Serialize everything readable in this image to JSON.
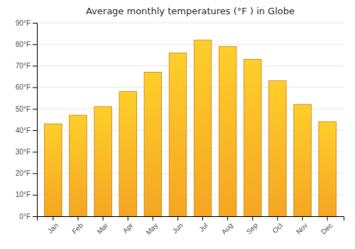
{
  "chart_data": {
    "type": "bar",
    "title": "Average monthly temperatures (°F ) in Globe",
    "categories": [
      "Jan",
      "Feb",
      "Mar",
      "Apr",
      "May",
      "Jun",
      "Jul",
      "Aug",
      "Sep",
      "Oct",
      "Nov",
      "Dec"
    ],
    "values": [
      43,
      47,
      51,
      58,
      67,
      76,
      82,
      79,
      73,
      63,
      52,
      44
    ],
    "color": "#F5A623",
    "ylim": [
      0,
      90
    ],
    "yticks": [
      {
        "value": 0,
        "label": "0°F"
      },
      {
        "value": 10,
        "label": "10°F"
      },
      {
        "value": 20,
        "label": "20°F"
      },
      {
        "value": 30,
        "label": "30°F"
      },
      {
        "value": 40,
        "label": "40°F"
      },
      {
        "value": 50,
        "label": "50°F"
      },
      {
        "value": 60,
        "label": "60°F"
      },
      {
        "value": 70,
        "label": "70°F"
      },
      {
        "value": 80,
        "label": "80°F"
      },
      {
        "value": 90,
        "label": "90°F"
      }
    ],
    "grid": true
  }
}
